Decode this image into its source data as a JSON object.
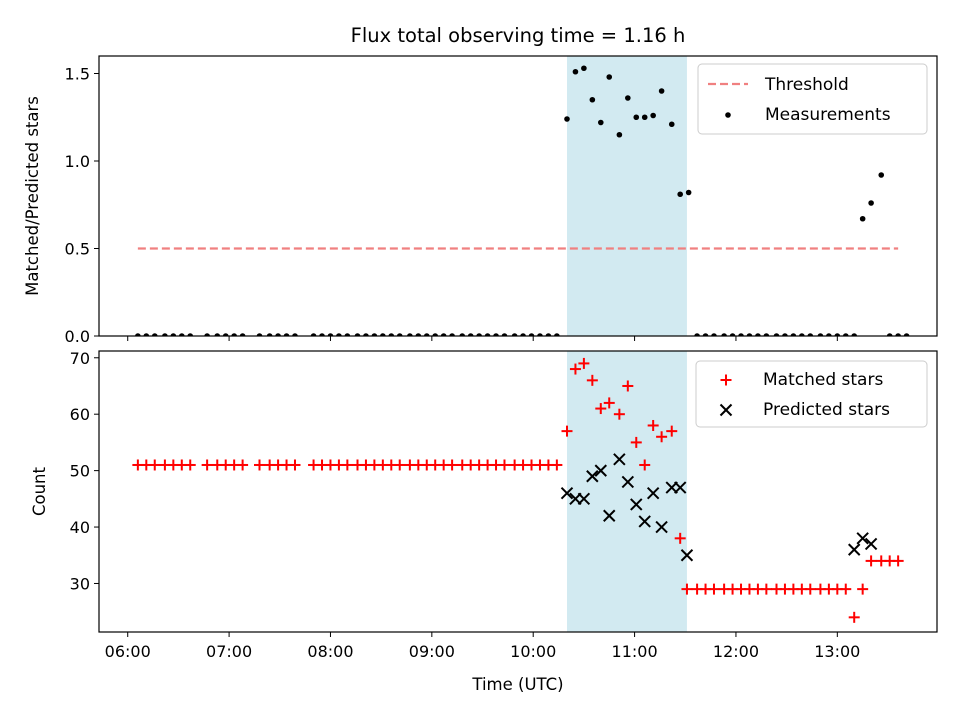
{
  "chart_data": [
    {
      "type": "scatter",
      "title": "Flux total observing time = 1.16 h",
      "ylabel": "Matched/Predicted stars",
      "xlabel": "",
      "ylim": [
        0,
        1.6
      ],
      "xlim": [
        "05:43",
        "13:59"
      ],
      "yticks": [
        0.0,
        0.5,
        1.0,
        1.5
      ],
      "ytick_labels": [
        "0.0",
        "0.5",
        "1.0",
        "1.5"
      ],
      "highlight_span": [
        "10:20",
        "11:31"
      ],
      "highlight_color": "#add8e6",
      "legend": {
        "placement": "upper right",
        "entries": [
          "Threshold",
          "Measurements"
        ]
      },
      "threshold": {
        "name": "Threshold",
        "y": 0.5,
        "x_start": "06:06",
        "x_end": "13:36",
        "color": "#f08080",
        "style": "dashed"
      },
      "series": [
        {
          "name": "Measurements",
          "color": "#000000",
          "marker": "dot",
          "points": [
            [
              "06:06",
              0
            ],
            [
              "06:11",
              0
            ],
            [
              "06:16",
              0
            ],
            [
              "06:22",
              0
            ],
            [
              "06:27",
              0
            ],
            [
              "06:32",
              0
            ],
            [
              "06:37",
              0
            ],
            [
              "06:47",
              0
            ],
            [
              "06:53",
              0
            ],
            [
              "06:58",
              0
            ],
            [
              "07:03",
              0
            ],
            [
              "07:08",
              0
            ],
            [
              "07:18",
              0
            ],
            [
              "07:24",
              0
            ],
            [
              "07:29",
              0
            ],
            [
              "07:34",
              0
            ],
            [
              "07:39",
              0
            ],
            [
              "07:50",
              0
            ],
            [
              "07:55",
              0
            ],
            [
              "08:00",
              0
            ],
            [
              "08:05",
              0
            ],
            [
              "08:10",
              0
            ],
            [
              "08:16",
              0
            ],
            [
              "08:21",
              0
            ],
            [
              "08:26",
              0
            ],
            [
              "08:31",
              0
            ],
            [
              "08:36",
              0
            ],
            [
              "08:41",
              0
            ],
            [
              "08:47",
              0
            ],
            [
              "08:52",
              0
            ],
            [
              "08:57",
              0
            ],
            [
              "09:02",
              0
            ],
            [
              "09:07",
              0
            ],
            [
              "09:12",
              0
            ],
            [
              "09:18",
              0
            ],
            [
              "09:23",
              0
            ],
            [
              "09:28",
              0
            ],
            [
              "09:33",
              0
            ],
            [
              "09:38",
              0
            ],
            [
              "09:43",
              0
            ],
            [
              "09:49",
              0
            ],
            [
              "09:54",
              0
            ],
            [
              "09:59",
              0
            ],
            [
              "10:04",
              0
            ],
            [
              "10:09",
              0
            ],
            [
              "10:14",
              0
            ],
            [
              "10:20",
              1.24
            ],
            [
              "10:25",
              1.51
            ],
            [
              "10:30",
              1.53
            ],
            [
              "10:35",
              1.35
            ],
            [
              "10:40",
              1.22
            ],
            [
              "10:45",
              1.48
            ],
            [
              "10:51",
              1.15
            ],
            [
              "10:56",
              1.36
            ],
            [
              "11:01",
              1.25
            ],
            [
              "11:06",
              1.25
            ],
            [
              "11:11",
              1.26
            ],
            [
              "11:16",
              1.4
            ],
            [
              "11:22",
              1.21
            ],
            [
              "11:27",
              0.81
            ],
            [
              "11:32",
              0.82
            ],
            [
              "11:37",
              0
            ],
            [
              "11:42",
              0
            ],
            [
              "11:47",
              0
            ],
            [
              "11:53",
              0
            ],
            [
              "11:58",
              0
            ],
            [
              "12:03",
              0
            ],
            [
              "12:08",
              0
            ],
            [
              "12:13",
              0
            ],
            [
              "12:18",
              0
            ],
            [
              "12:24",
              0
            ],
            [
              "12:29",
              0
            ],
            [
              "12:34",
              0
            ],
            [
              "12:39",
              0
            ],
            [
              "12:44",
              0
            ],
            [
              "12:50",
              0
            ],
            [
              "12:55",
              0
            ],
            [
              "13:00",
              0
            ],
            [
              "13:05",
              0
            ],
            [
              "13:10",
              0
            ],
            [
              "13:15",
              0.67
            ],
            [
              "13:20",
              0.76
            ],
            [
              "13:26",
              0.92
            ],
            [
              "13:31",
              0
            ],
            [
              "13:36",
              0
            ],
            [
              "13:41",
              0
            ]
          ]
        }
      ]
    },
    {
      "type": "scatter",
      "title": "",
      "ylabel": "Count",
      "xlabel": "Time (UTC)",
      "ylim": [
        21.4,
        71.2
      ],
      "xlim": [
        "05:43",
        "13:59"
      ],
      "yticks": [
        30,
        40,
        50,
        60,
        70
      ],
      "ytick_labels": [
        "30",
        "40",
        "50",
        "60",
        "70"
      ],
      "xticks": [
        "06:00",
        "07:00",
        "08:00",
        "09:00",
        "10:00",
        "11:00",
        "12:00",
        "13:00"
      ],
      "highlight_span": [
        "10:20",
        "11:31"
      ],
      "highlight_color": "#add8e6",
      "legend": {
        "placement": "upper right",
        "entries": [
          "Matched stars",
          "Predicted stars"
        ]
      },
      "series": [
        {
          "name": "Matched stars",
          "color": "#ff0000",
          "marker": "plus",
          "points": [
            [
              "06:06",
              51
            ],
            [
              "06:11",
              51
            ],
            [
              "06:16",
              51
            ],
            [
              "06:22",
              51
            ],
            [
              "06:27",
              51
            ],
            [
              "06:32",
              51
            ],
            [
              "06:37",
              51
            ],
            [
              "06:47",
              51
            ],
            [
              "06:53",
              51
            ],
            [
              "06:58",
              51
            ],
            [
              "07:03",
              51
            ],
            [
              "07:08",
              51
            ],
            [
              "07:18",
              51
            ],
            [
              "07:24",
              51
            ],
            [
              "07:29",
              51
            ],
            [
              "07:34",
              51
            ],
            [
              "07:39",
              51
            ],
            [
              "07:50",
              51
            ],
            [
              "07:55",
              51
            ],
            [
              "08:00",
              51
            ],
            [
              "08:05",
              51
            ],
            [
              "08:10",
              51
            ],
            [
              "08:16",
              51
            ],
            [
              "08:21",
              51
            ],
            [
              "08:26",
              51
            ],
            [
              "08:31",
              51
            ],
            [
              "08:36",
              51
            ],
            [
              "08:41",
              51
            ],
            [
              "08:47",
              51
            ],
            [
              "08:52",
              51
            ],
            [
              "08:57",
              51
            ],
            [
              "09:02",
              51
            ],
            [
              "09:07",
              51
            ],
            [
              "09:12",
              51
            ],
            [
              "09:18",
              51
            ],
            [
              "09:23",
              51
            ],
            [
              "09:28",
              51
            ],
            [
              "09:33",
              51
            ],
            [
              "09:38",
              51
            ],
            [
              "09:43",
              51
            ],
            [
              "09:49",
              51
            ],
            [
              "09:54",
              51
            ],
            [
              "09:59",
              51
            ],
            [
              "10:04",
              51
            ],
            [
              "10:09",
              51
            ],
            [
              "10:14",
              51
            ],
            [
              "10:20",
              57
            ],
            [
              "10:25",
              68
            ],
            [
              "10:30",
              69
            ],
            [
              "10:35",
              66
            ],
            [
              "10:40",
              61
            ],
            [
              "10:45",
              62
            ],
            [
              "10:51",
              60
            ],
            [
              "10:56",
              65
            ],
            [
              "11:01",
              55
            ],
            [
              "11:06",
              51
            ],
            [
              "11:11",
              58
            ],
            [
              "11:16",
              56
            ],
            [
              "11:22",
              57
            ],
            [
              "11:27",
              38
            ],
            [
              "11:31",
              29
            ],
            [
              "11:37",
              29
            ],
            [
              "11:42",
              29
            ],
            [
              "11:47",
              29
            ],
            [
              "11:53",
              29
            ],
            [
              "11:58",
              29
            ],
            [
              "12:03",
              29
            ],
            [
              "12:08",
              29
            ],
            [
              "12:13",
              29
            ],
            [
              "12:18",
              29
            ],
            [
              "12:24",
              29
            ],
            [
              "12:29",
              29
            ],
            [
              "12:34",
              29
            ],
            [
              "12:39",
              29
            ],
            [
              "12:44",
              29
            ],
            [
              "12:50",
              29
            ],
            [
              "12:55",
              29
            ],
            [
              "13:00",
              29
            ],
            [
              "13:05",
              29
            ],
            [
              "13:10",
              24
            ],
            [
              "13:15",
              29
            ],
            [
              "13:20",
              34
            ],
            [
              "13:26",
              34
            ],
            [
              "13:31",
              34
            ],
            [
              "13:36",
              34
            ]
          ]
        },
        {
          "name": "Predicted stars",
          "color": "#000000",
          "marker": "x",
          "points": [
            [
              "10:20",
              46
            ],
            [
              "10:25",
              45
            ],
            [
              "10:30",
              45
            ],
            [
              "10:35",
              49
            ],
            [
              "10:40",
              50
            ],
            [
              "10:45",
              42
            ],
            [
              "10:51",
              52
            ],
            [
              "10:56",
              48
            ],
            [
              "11:01",
              44
            ],
            [
              "11:06",
              41
            ],
            [
              "11:11",
              46
            ],
            [
              "11:16",
              40
            ],
            [
              "11:22",
              47
            ],
            [
              "11:27",
              47
            ],
            [
              "11:31",
              35
            ],
            [
              "13:10",
              36
            ],
            [
              "13:15",
              38
            ],
            [
              "13:20",
              37
            ]
          ]
        }
      ]
    }
  ]
}
